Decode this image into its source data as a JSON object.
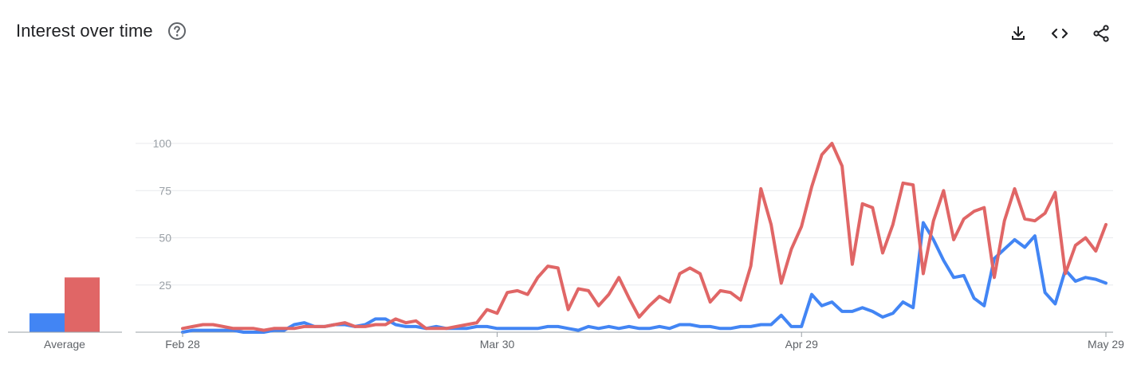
{
  "header": {
    "title": "Interest over time",
    "help_icon": "help-circle-icon"
  },
  "actions": [
    {
      "name": "download-icon"
    },
    {
      "name": "embed-code-icon"
    },
    {
      "name": "share-icon"
    }
  ],
  "colors": {
    "series1": "#4285f4",
    "series2": "#e06666",
    "grid": "#e8eaed",
    "axis": "#9aa0a6"
  },
  "chart_data": [
    {
      "type": "bar",
      "categories": [
        "Average"
      ],
      "series": [
        {
          "values": [
            10
          ],
          "color": "#4285f4"
        },
        {
          "values": [
            29
          ],
          "color": "#e06666"
        }
      ],
      "ylim": [
        0,
        100
      ]
    },
    {
      "type": "line",
      "x_start": "Feb 28",
      "x_end": "May 29",
      "xticks": [
        "Feb 28",
        "Mar 30",
        "Apr 29",
        "May 29"
      ],
      "xtick_positions": [
        0,
        31,
        61,
        91
      ],
      "yticks": [
        25,
        50,
        75,
        100
      ],
      "ylim": [
        0,
        100
      ],
      "grid": true,
      "series": [
        {
          "color": "#4285f4",
          "values": [
            0,
            1,
            1,
            1,
            1,
            1,
            0,
            0,
            0,
            1,
            1,
            4,
            5,
            3,
            3,
            4,
            4,
            3,
            4,
            7,
            7,
            4,
            3,
            3,
            2,
            3,
            2,
            2,
            2,
            3,
            3,
            2,
            2,
            2,
            2,
            2,
            3,
            3,
            2,
            1,
            3,
            2,
            3,
            2,
            3,
            2,
            2,
            3,
            2,
            4,
            4,
            3,
            3,
            2,
            2,
            3,
            3,
            4,
            4,
            9,
            3,
            3,
            20,
            14,
            16,
            11,
            11,
            13,
            11,
            8,
            10,
            16,
            13,
            58,
            49,
            38,
            29,
            30,
            18,
            14,
            39,
            44,
            49,
            45,
            51,
            21,
            15,
            33,
            27,
            29,
            28,
            26
          ]
        },
        {
          "color": "#e06666",
          "values": [
            2,
            3,
            4,
            4,
            3,
            2,
            2,
            2,
            1,
            2,
            2,
            2,
            3,
            3,
            3,
            4,
            5,
            3,
            3,
            4,
            4,
            7,
            5,
            6,
            2,
            2,
            2,
            3,
            4,
            5,
            12,
            10,
            21,
            22,
            20,
            29,
            35,
            34,
            12,
            23,
            22,
            14,
            20,
            29,
            18,
            8,
            14,
            19,
            16,
            31,
            34,
            31,
            16,
            22,
            21,
            17,
            35,
            76,
            57,
            26,
            44,
            56,
            77,
            94,
            100,
            88,
            36,
            68,
            66,
            42,
            57,
            79,
            78,
            31,
            59,
            75,
            49,
            60,
            64,
            66,
            29,
            59,
            76,
            60,
            59,
            63,
            74,
            31,
            46,
            50,
            43,
            57
          ]
        }
      ]
    }
  ]
}
